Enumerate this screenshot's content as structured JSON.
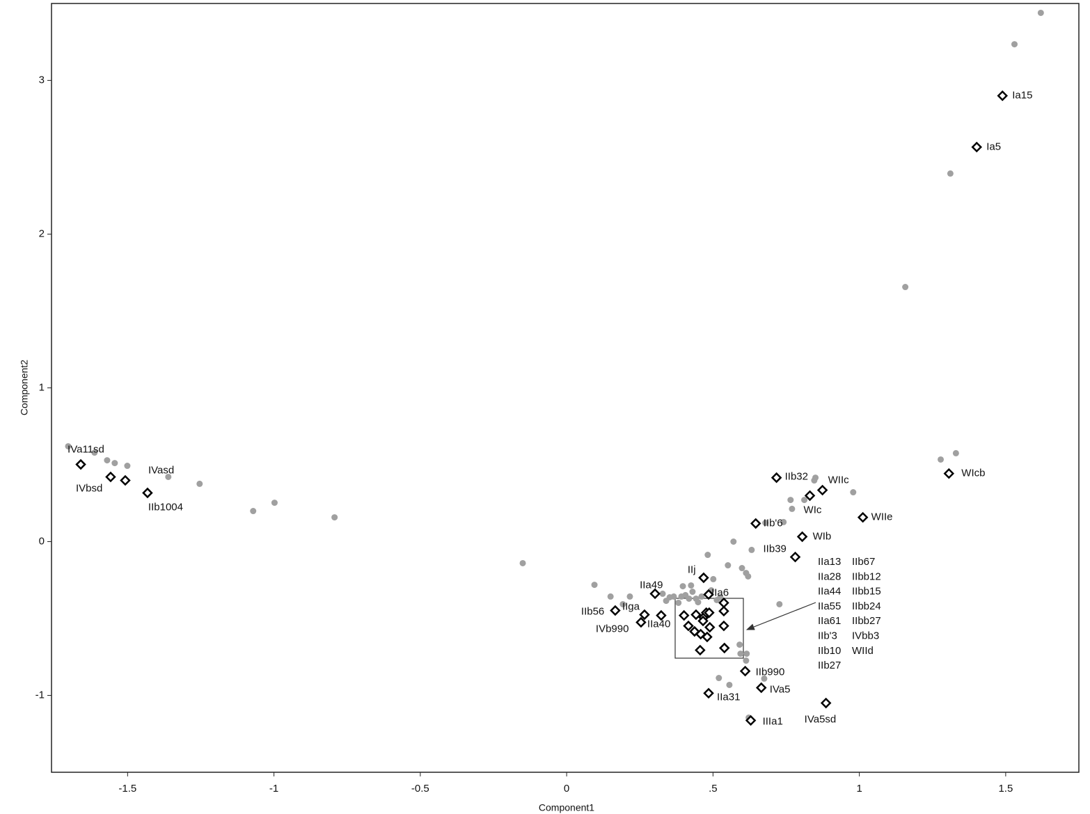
{
  "chart_data": {
    "type": "scatter",
    "x_label": "Component1",
    "y_label": "Component2",
    "xlim": [
      -1.76,
      1.75
    ],
    "ylim": [
      -1.5,
      3.5
    ],
    "xticks": [
      -1.5,
      -1,
      -0.5,
      0,
      {
        "value": 0.5,
        "label": ".5"
      },
      1,
      1.5
    ],
    "yticks": [
      -1,
      0,
      1,
      2,
      3
    ],
    "series": [
      {
        "color": "#a0a0a0",
        "marker": "circle",
        "x": [
          1.62,
          1.53,
          1.311,
          1.157,
          1.278,
          1.33,
          -1.703,
          -1.613,
          -1.57,
          -1.544,
          -1.501,
          -1.361,
          -1.254,
          -1.071,
          -0.998,
          -0.793,
          -0.15,
          0.095,
          0.15,
          0.192,
          0.216,
          0.482,
          0.57,
          0.632,
          0.551,
          0.599,
          0.613,
          0.62,
          0.727,
          0.765,
          0.77,
          0.741,
          0.812,
          0.85,
          0.979,
          0.846,
          0.679,
          0.52,
          0.556,
          0.675,
          0.622,
          0.591,
          0.594,
          0.615,
          0.613,
          0.328,
          0.34,
          0.352,
          0.366,
          0.382,
          0.392,
          0.406,
          0.418,
          0.43,
          0.442,
          0.461,
          0.501,
          0.494,
          0.513,
          0.525,
          0.397,
          0.425,
          0.449
        ],
        "y": [
          3.439,
          3.235,
          2.394,
          1.656,
          0.534,
          0.575,
          0.62,
          0.579,
          0.529,
          0.511,
          0.493,
          0.421,
          0.376,
          0.199,
          0.253,
          0.158,
          -0.14,
          -0.281,
          -0.357,
          -0.407,
          -0.357,
          -0.086,
          0,
          -0.054,
          -0.154,
          -0.172,
          -0.204,
          -0.226,
          -0.407,
          0.271,
          0.213,
          0.127,
          0.271,
          0.416,
          0.321,
          0.398,
          0.122,
          -0.887,
          -0.932,
          -0.891,
          -1.145,
          -0.67,
          -0.729,
          -0.729,
          -0.774,
          -0.339,
          -0.385,
          -0.362,
          -0.357,
          -0.398,
          -0.357,
          -0.348,
          -0.371,
          -0.326,
          -0.371,
          -0.357,
          -0.244,
          -0.317,
          -0.38,
          -0.362,
          -0.29,
          -0.285,
          -0.394
        ]
      },
      {
        "color": "#000000",
        "marker": "diamond",
        "x": [
          0.537,
          0.537,
          0.537,
          0.539,
          0.401,
          0.416,
          0.442,
          0.437,
          0.468,
          0.477,
          0.487,
          0.489,
          0.458,
          0.48,
          0.456,
          0.466
        ],
        "y": [
          -0.398,
          -0.452,
          -0.548,
          -0.692,
          -0.48,
          -0.548,
          -0.475,
          -0.584,
          -0.493,
          -0.462,
          -0.462,
          -0.557,
          -0.602,
          -0.62,
          -0.706,
          -0.516
        ]
      },
      {
        "color": "#000000",
        "marker": "diamond",
        "labels": [
          "Ia15",
          "Ia5",
          "WIcb",
          "IVa11sd",
          "IVbsd",
          "IVasd",
          "IIb1004",
          "IIb32",
          "WIIc",
          "WIc",
          "WIIe",
          "IIb'6",
          "WIb",
          "IIb39",
          "IIj",
          "IIa49",
          "IIa6",
          "IIb56",
          "IIga",
          "IVb990",
          "IIa40",
          "IIb990",
          "IVa5",
          "IVa5sd",
          "IIa31",
          "IIIa1"
        ],
        "x": [
          1.489,
          1.401,
          1.306,
          -1.66,
          -1.558,
          -1.508,
          -1.432,
          0.717,
          0.874,
          0.831,
          1.012,
          0.646,
          0.805,
          0.781,
          0.468,
          0.302,
          0.485,
          0.166,
          0.266,
          0.254,
          0.323,
          0.61,
          0.665,
          0.886,
          0.485,
          0.629
        ],
        "y": [
          2.9,
          2.566,
          0.443,
          0.502,
          0.421,
          0.398,
          0.317,
          0.416,
          0.335,
          0.299,
          0.158,
          0.118,
          0.032,
          -0.1,
          -0.235,
          -0.339,
          -0.344,
          -0.448,
          -0.475,
          -0.525,
          -0.48,
          -0.842,
          -0.95,
          -1.05,
          -0.986,
          -1.163
        ]
      }
    ],
    "annotation": {
      "columns": [
        [
          "IIa13",
          "IIa28",
          "IIa44",
          "IIa55",
          "IIa61",
          "IIb'3",
          "IIb10",
          "IIb27"
        ],
        [
          "IIb67",
          "IIbb12",
          "IIbb15",
          "IIbb24",
          "IIbb27",
          "IVbb3",
          "WIId"
        ]
      ]
    }
  }
}
